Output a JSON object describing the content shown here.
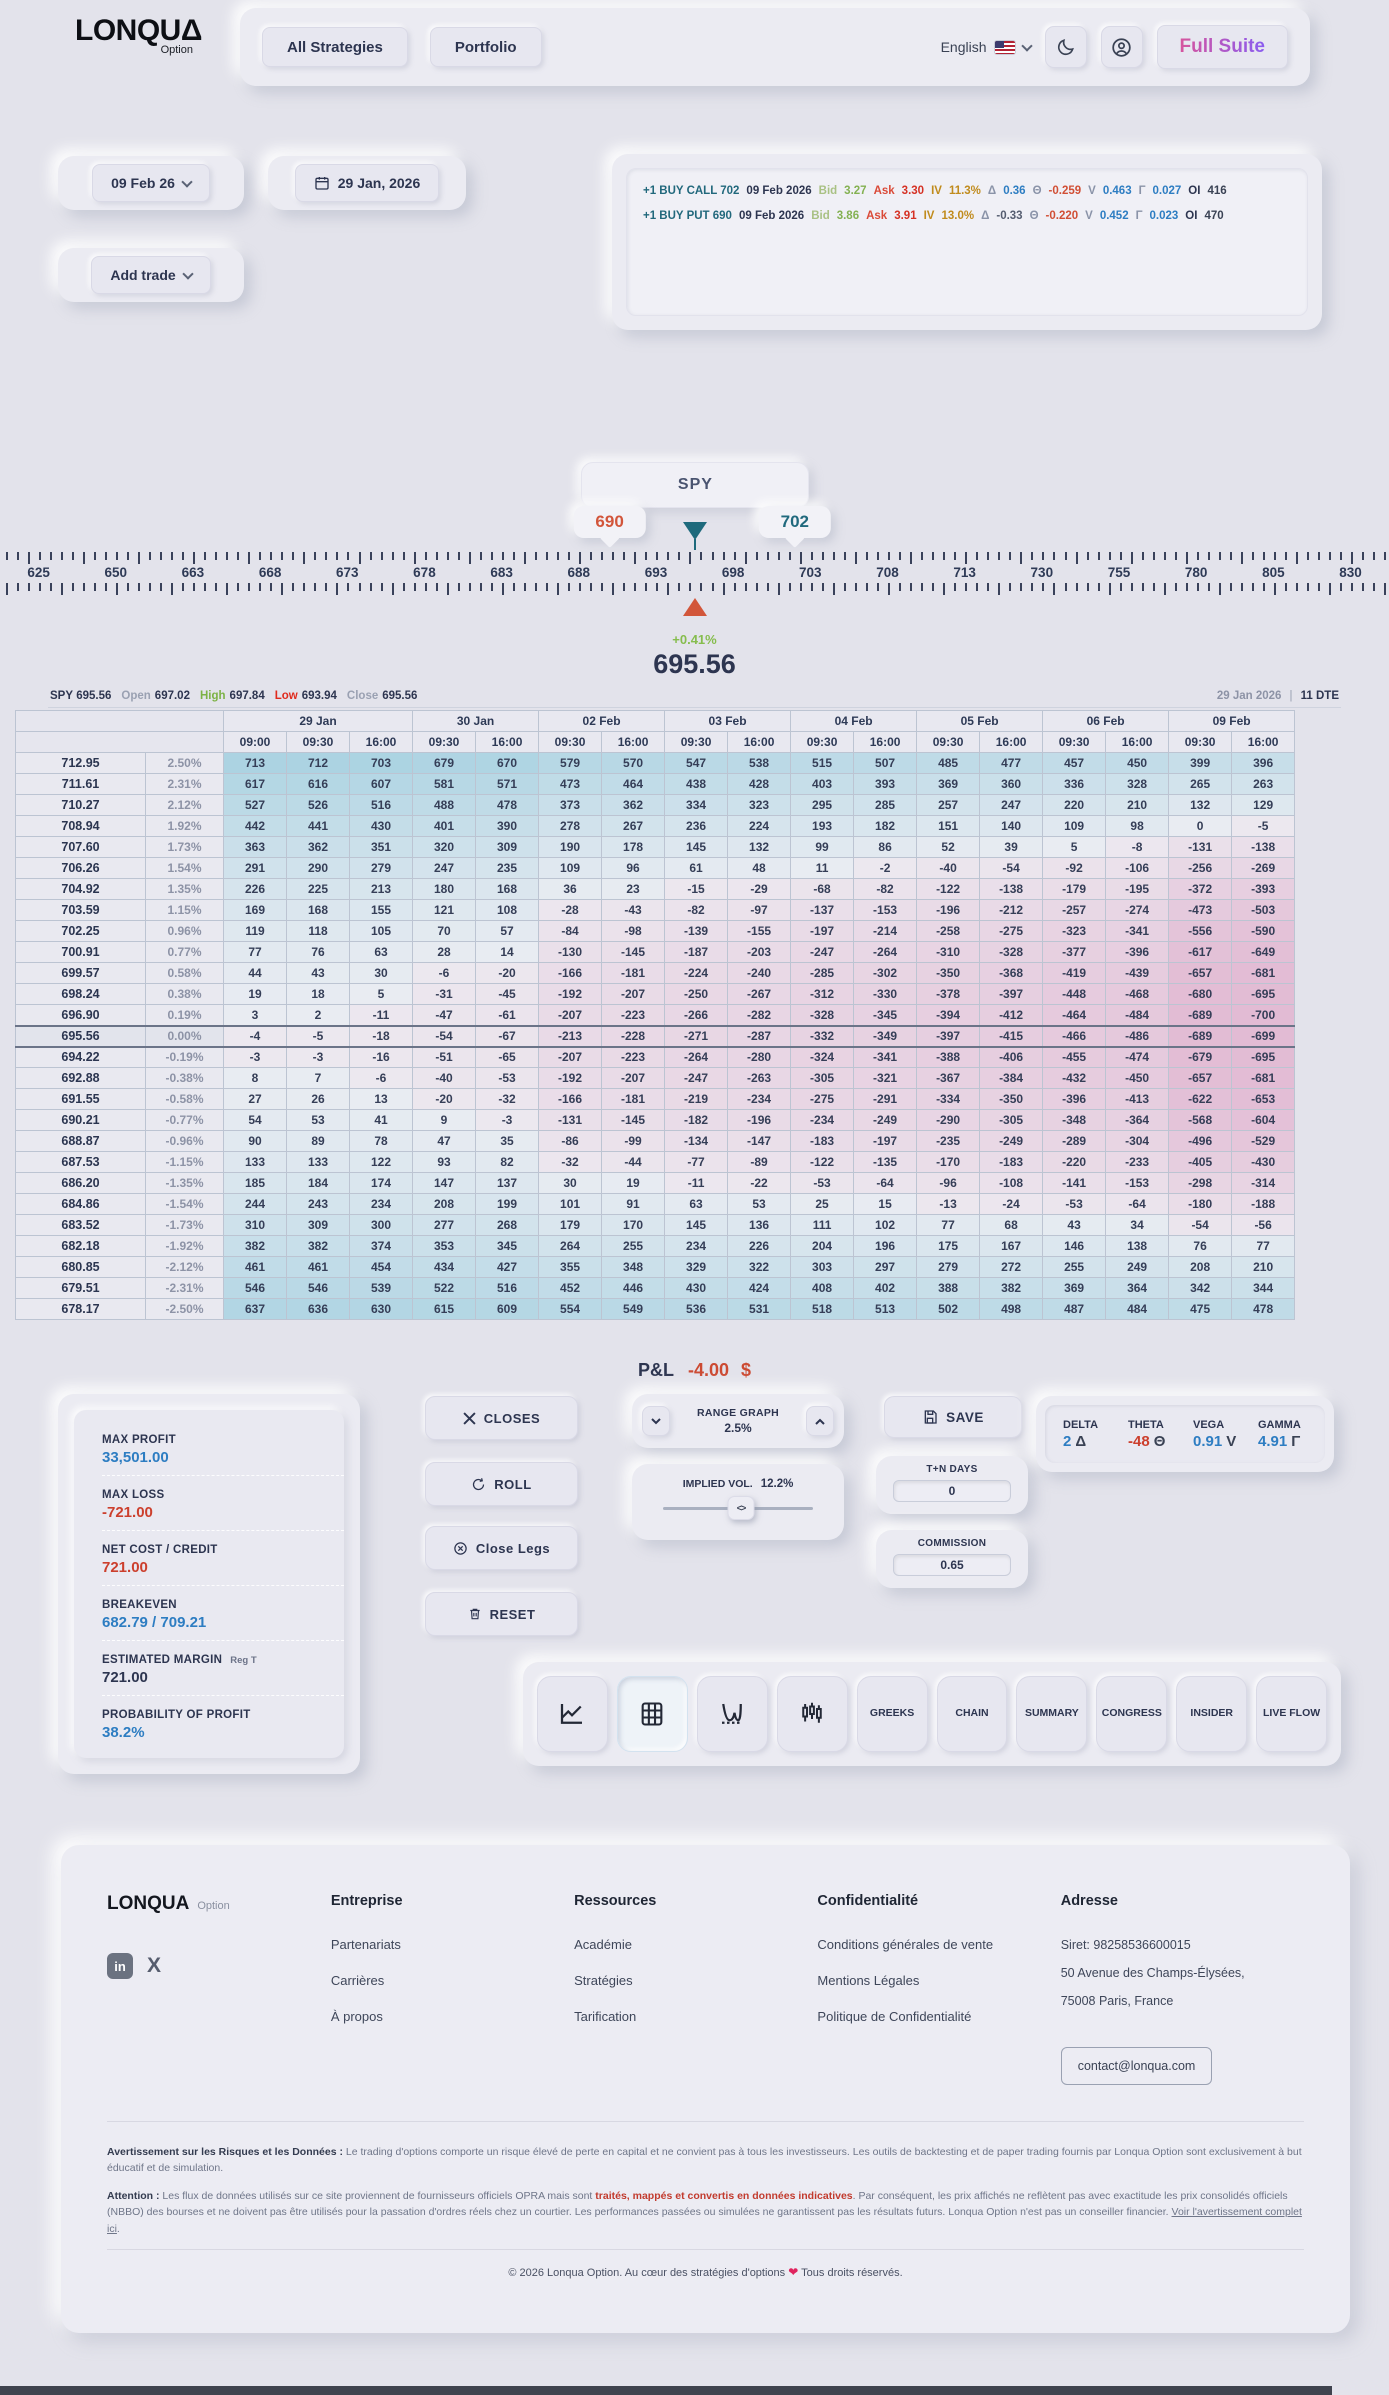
{
  "header": {
    "logo_text": "LONQU",
    "logo_delta": "Δ",
    "logo_sub": "Option",
    "nav": [
      "All Strategies",
      "Portfolio"
    ],
    "language": "English",
    "full_suite": "Full Suite"
  },
  "toolbar": {
    "expiry": "09 Feb 26",
    "trade_date": "29 Jan, 2026",
    "add_trade": "Add trade"
  },
  "legs": [
    {
      "tokens": [
        {
          "t": "+1 BUY CALL 702",
          "c": "side"
        },
        {
          "t": "09 Feb 2026",
          "c": "date"
        },
        {
          "t": "Bid",
          "c": "lab-bid"
        },
        {
          "t": "3.27",
          "c": "val-bid"
        },
        {
          "t": "Ask",
          "c": "lab-ask"
        },
        {
          "t": "3.30",
          "c": "val-ask"
        },
        {
          "t": "IV",
          "c": "lab-iv"
        },
        {
          "t": "11.3%",
          "c": "val-iv"
        },
        {
          "t": "Δ",
          "c": "sym"
        },
        {
          "t": "0.36",
          "c": "val-blue"
        },
        {
          "t": "Θ",
          "c": "sym"
        },
        {
          "t": "-0.259",
          "c": "val-red"
        },
        {
          "t": "V",
          "c": "sym"
        },
        {
          "t": "0.463",
          "c": "val-blue"
        },
        {
          "t": "Γ",
          "c": "sym"
        },
        {
          "t": "0.027",
          "c": "val-blue"
        },
        {
          "t": "OI",
          "c": "lab-oi"
        },
        {
          "t": "416",
          "c": "val-oi"
        }
      ]
    },
    {
      "tokens": [
        {
          "t": "+1 BUY PUT 690",
          "c": "side"
        },
        {
          "t": "09 Feb 2026",
          "c": "date"
        },
        {
          "t": "Bid",
          "c": "lab-bid"
        },
        {
          "t": "3.86",
          "c": "val-bid"
        },
        {
          "t": "Ask",
          "c": "lab-ask"
        },
        {
          "t": "3.91",
          "c": "val-ask"
        },
        {
          "t": "IV",
          "c": "lab-iv"
        },
        {
          "t": "13.0%",
          "c": "val-iv"
        },
        {
          "t": "Δ",
          "c": "sym"
        },
        {
          "t": "-0.33",
          "c": "val-dark"
        },
        {
          "t": "Θ",
          "c": "sym"
        },
        {
          "t": "-0.220",
          "c": "val-red"
        },
        {
          "t": "V",
          "c": "sym"
        },
        {
          "t": "0.452",
          "c": "val-blue"
        },
        {
          "t": "Γ",
          "c": "sym"
        },
        {
          "t": "0.023",
          "c": "val-blue"
        },
        {
          "t": "OI",
          "c": "lab-oi"
        },
        {
          "t": "470",
          "c": "val-oi"
        }
      ]
    }
  ],
  "slider": {
    "symbol": "SPY",
    "lower_badge": "690",
    "upper_badge": "702",
    "lower_value": 690,
    "upper_value": 702,
    "current_value": 695.56,
    "ruler_labels": [
      625,
      650,
      663,
      668,
      673,
      678,
      683,
      688,
      693,
      698,
      703,
      708,
      713,
      730,
      755,
      780,
      805,
      830
    ],
    "change_pct": "+0.41%",
    "price_display": "695.56"
  },
  "ohlc": {
    "sym": "SPY",
    "last": "695.56",
    "o_l": "Open",
    "o": "697.02",
    "h_l": "High",
    "h": "697.84",
    "l_l": "Low",
    "l": "693.94",
    "c_l": "Close",
    "c": "695.56",
    "date": "29 Jan 2026",
    "sep": "|",
    "dte": "11 DTE"
  },
  "matrix": {
    "date_groups": [
      {
        "label": "29 Jan",
        "times": [
          "09:00",
          "09:30",
          "16:00"
        ]
      },
      {
        "label": "30 Jan",
        "times": [
          "09:30",
          "16:00"
        ]
      },
      {
        "label": "02 Feb",
        "times": [
          "09:30",
          "16:00"
        ]
      },
      {
        "label": "03 Feb",
        "times": [
          "09:30",
          "16:00"
        ]
      },
      {
        "label": "04 Feb",
        "times": [
          "09:30",
          "16:00"
        ]
      },
      {
        "label": "05 Feb",
        "times": [
          "09:30",
          "16:00"
        ]
      },
      {
        "label": "06 Feb",
        "times": [
          "09:30",
          "16:00"
        ]
      },
      {
        "label": "09 Feb",
        "times": [
          "09:30",
          "16:00"
        ]
      }
    ],
    "current_row_index": 13,
    "rows": [
      {
        "price": "712.95",
        "pct": "2.50%",
        "values": [
          713,
          712,
          703,
          679,
          670,
          579,
          570,
          547,
          538,
          515,
          507,
          485,
          477,
          457,
          450,
          399,
          396
        ]
      },
      {
        "price": "711.61",
        "pct": "2.31%",
        "values": [
          617,
          616,
          607,
          581,
          571,
          473,
          464,
          438,
          428,
          403,
          393,
          369,
          360,
          336,
          328,
          265,
          263
        ]
      },
      {
        "price": "710.27",
        "pct": "2.12%",
        "values": [
          527,
          526,
          516,
          488,
          478,
          373,
          362,
          334,
          323,
          295,
          285,
          257,
          247,
          220,
          210,
          132,
          129
        ]
      },
      {
        "price": "708.94",
        "pct": "1.92%",
        "values": [
          442,
          441,
          430,
          401,
          390,
          278,
          267,
          236,
          224,
          193,
          182,
          151,
          140,
          109,
          98,
          0,
          -5
        ]
      },
      {
        "price": "707.60",
        "pct": "1.73%",
        "values": [
          363,
          362,
          351,
          320,
          309,
          190,
          178,
          145,
          132,
          99,
          86,
          52,
          39,
          5,
          -8,
          -131,
          -138
        ]
      },
      {
        "price": "706.26",
        "pct": "1.54%",
        "values": [
          291,
          290,
          279,
          247,
          235,
          109,
          96,
          61,
          48,
          11,
          -2,
          -40,
          -54,
          -92,
          -106,
          -256,
          -269
        ]
      },
      {
        "price": "704.92",
        "pct": "1.35%",
        "values": [
          226,
          225,
          213,
          180,
          168,
          36,
          23,
          -15,
          -29,
          -68,
          -82,
          -122,
          -138,
          -179,
          -195,
          -372,
          -393
        ]
      },
      {
        "price": "703.59",
        "pct": "1.15%",
        "values": [
          169,
          168,
          155,
          121,
          108,
          -28,
          -43,
          -82,
          -97,
          -137,
          -153,
          -196,
          -212,
          -257,
          -274,
          -473,
          -503
        ]
      },
      {
        "price": "702.25",
        "pct": "0.96%",
        "values": [
          119,
          118,
          105,
          70,
          57,
          -84,
          -98,
          -139,
          -155,
          -197,
          -214,
          -258,
          -275,
          -323,
          -341,
          -556,
          -590
        ]
      },
      {
        "price": "700.91",
        "pct": "0.77%",
        "values": [
          77,
          76,
          63,
          28,
          14,
          -130,
          -145,
          -187,
          -203,
          -247,
          -264,
          -310,
          -328,
          -377,
          -396,
          -617,
          -649
        ]
      },
      {
        "price": "699.57",
        "pct": "0.58%",
        "values": [
          44,
          43,
          30,
          -6,
          -20,
          -166,
          -181,
          -224,
          -240,
          -285,
          -302,
          -350,
          -368,
          -419,
          -439,
          -657,
          -681
        ]
      },
      {
        "price": "698.24",
        "pct": "0.38%",
        "values": [
          19,
          18,
          5,
          -31,
          -45,
          -192,
          -207,
          -250,
          -267,
          -312,
          -330,
          -378,
          -397,
          -448,
          -468,
          -680,
          -695
        ]
      },
      {
        "price": "696.90",
        "pct": "0.19%",
        "values": [
          3,
          2,
          -11,
          -47,
          -61,
          -207,
          -223,
          -266,
          -282,
          -328,
          -345,
          -394,
          -412,
          -464,
          -484,
          -689,
          -700
        ]
      },
      {
        "price": "695.56",
        "pct": "0.00%",
        "values": [
          -4,
          -5,
          -18,
          -54,
          -67,
          -213,
          -228,
          -271,
          -287,
          -332,
          -349,
          -397,
          -415,
          -466,
          -486,
          -689,
          -699
        ]
      },
      {
        "price": "694.22",
        "pct": "-0.19%",
        "values": [
          -3,
          -3,
          -16,
          -51,
          -65,
          -207,
          -223,
          -264,
          -280,
          -324,
          -341,
          -388,
          -406,
          -455,
          -474,
          -679,
          -695
        ]
      },
      {
        "price": "692.88",
        "pct": "-0.38%",
        "values": [
          8,
          7,
          -6,
          -40,
          -53,
          -192,
          -207,
          -247,
          -263,
          -305,
          -321,
          -367,
          -384,
          -432,
          -450,
          -657,
          -681
        ]
      },
      {
        "price": "691.55",
        "pct": "-0.58%",
        "values": [
          27,
          26,
          13,
          -20,
          -32,
          -166,
          -181,
          -219,
          -234,
          -275,
          -291,
          -334,
          -350,
          -396,
          -413,
          -622,
          -653
        ]
      },
      {
        "price": "690.21",
        "pct": "-0.77%",
        "values": [
          54,
          53,
          41,
          9,
          -3,
          -131,
          -145,
          -182,
          -196,
          -234,
          -249,
          -290,
          -305,
          -348,
          -364,
          -568,
          -604
        ]
      },
      {
        "price": "688.87",
        "pct": "-0.96%",
        "values": [
          90,
          89,
          78,
          47,
          35,
          -86,
          -99,
          -134,
          -147,
          -183,
          -197,
          -235,
          -249,
          -289,
          -304,
          -496,
          -529
        ]
      },
      {
        "price": "687.53",
        "pct": "-1.15%",
        "values": [
          133,
          133,
          122,
          93,
          82,
          -32,
          -44,
          -77,
          -89,
          -122,
          -135,
          -170,
          -183,
          -220,
          -233,
          -405,
          -430
        ]
      },
      {
        "price": "686.20",
        "pct": "-1.35%",
        "values": [
          185,
          184,
          174,
          147,
          137,
          30,
          19,
          -11,
          -22,
          -53,
          -64,
          -96,
          -108,
          -141,
          -153,
          -298,
          -314
        ]
      },
      {
        "price": "684.86",
        "pct": "-1.54%",
        "values": [
          244,
          243,
          234,
          208,
          199,
          101,
          91,
          63,
          53,
          25,
          15,
          -13,
          -24,
          -53,
          -64,
          -180,
          -188
        ]
      },
      {
        "price": "683.52",
        "pct": "-1.73%",
        "values": [
          310,
          309,
          300,
          277,
          268,
          179,
          170,
          145,
          136,
          111,
          102,
          77,
          68,
          43,
          34,
          -54,
          -56
        ]
      },
      {
        "price": "682.18",
        "pct": "-1.92%",
        "values": [
          382,
          382,
          374,
          353,
          345,
          264,
          255,
          234,
          226,
          204,
          196,
          175,
          167,
          146,
          138,
          76,
          77
        ]
      },
      {
        "price": "680.85",
        "pct": "-2.12%",
        "values": [
          461,
          461,
          454,
          434,
          427,
          355,
          348,
          329,
          322,
          303,
          297,
          279,
          272,
          255,
          249,
          208,
          210
        ]
      },
      {
        "price": "679.51",
        "pct": "-2.31%",
        "values": [
          546,
          546,
          539,
          522,
          516,
          452,
          446,
          430,
          424,
          408,
          402,
          388,
          382,
          369,
          364,
          342,
          344
        ]
      },
      {
        "price": "678.17",
        "pct": "-2.50%",
        "values": [
          637,
          636,
          630,
          615,
          609,
          554,
          549,
          536,
          531,
          518,
          513,
          502,
          498,
          487,
          484,
          475,
          478
        ]
      }
    ]
  },
  "pnl": {
    "label": "P&L",
    "value": "-4.00",
    "currency": "$"
  },
  "stats": {
    "items": [
      {
        "label": "MAX PROFIT",
        "value": "33,501.00"
      },
      {
        "label": "MAX LOSS",
        "value": "-721.00"
      },
      {
        "label": "NET COST / CREDIT",
        "value": "721.00"
      },
      {
        "label": "BREAKEVEN",
        "value": "682.79 / 709.21"
      },
      {
        "label": "ESTIMATED MARGIN",
        "tag": "Reg T",
        "value": "721.00"
      },
      {
        "label": "PROBABILITY OF PROFIT",
        "value": "38.2%"
      }
    ]
  },
  "actions": {
    "closes": "CLOSES",
    "roll": "ROLL",
    "close_legs": "Close Legs",
    "reset": "RESET",
    "save": "SAVE"
  },
  "range_graph": {
    "label": "RANGE GRAPH",
    "value": "2.5%"
  },
  "implied_vol": {
    "label": "IMPLIED VOL.",
    "value": "12.2%",
    "handle": "<>"
  },
  "tn_days": {
    "label": "T+N DAYS",
    "value": "0"
  },
  "commission": {
    "label": "COMMISSION",
    "value": "0.65"
  },
  "greeks": {
    "items": [
      {
        "label": "DELTA",
        "value": "2",
        "symbol": "Δ",
        "color": "v-blue"
      },
      {
        "label": "THETA",
        "value": "-48",
        "symbol": "Θ",
        "color": "v-red"
      },
      {
        "label": "VEGA",
        "value": "0.91",
        "symbol": "V",
        "color": "v-blue"
      },
      {
        "label": "GAMMA",
        "value": "4.91",
        "symbol": "Γ",
        "color": "v-blue"
      }
    ]
  },
  "tabs": {
    "text": [
      "GREEKS",
      "CHAIN",
      "SUMMARY",
      "CONGRESS",
      "INSIDER",
      "LIVE FLOW"
    ]
  },
  "footer": {
    "brand": "LONQUA",
    "brand_sub": "Option",
    "social": {
      "linkedin": "in",
      "x": "X"
    },
    "columns": [
      {
        "title": "Entreprise",
        "links": [
          "Partenariats",
          "Carrières",
          "À propos"
        ]
      },
      {
        "title": "Ressources",
        "links": [
          "Académie",
          "Stratégies",
          "Tarification"
        ]
      },
      {
        "title": "Confidentialité",
        "links": [
          "Conditions générales de vente",
          "Mentions Légales",
          "Politique de Confidentialité"
        ]
      }
    ],
    "address": {
      "title": "Adresse",
      "lines": [
        "Siret: 98258536600015",
        "50 Avenue des Champs-Élysées,",
        "75008 Paris, France"
      ],
      "contact": "contact@lonqua.com"
    },
    "disclaimer1": [
      {
        "t": "Avertissement sur les Risques et les Données : ",
        "s": "b"
      },
      {
        "t": "Le trading d'options comporte un risque élevé de perte en capital et ne convient pas à tous les investisseurs. Les outils de backtesting et de paper trading fournis par Lonqua Option sont exclusivement à but éducatif et de simulation.",
        "s": "n"
      }
    ],
    "disclaimer2": [
      {
        "t": "Attention : ",
        "s": "b"
      },
      {
        "t": "Les flux de données utilisés sur ce site proviennent de fournisseurs officiels OPRA mais sont ",
        "s": "n"
      },
      {
        "t": "traités, mappés et convertis en données indicatives",
        "s": "r"
      },
      {
        "t": ". Par conséquent, les prix affichés ne reflètent pas avec exactitude les prix consolidés officiels (NBBO) des bourses et ne doivent pas être utilisés pour la passation d'ordres réels chez un courtier. Les performances passées ou simulées ne garantissent pas les résultats futurs. Lonqua Option n'est pas un conseiller financier. ",
        "s": "n"
      },
      {
        "t": "Voir l'avertissement complet ici",
        "s": "u"
      },
      {
        "t": ".",
        "s": "n"
      }
    ],
    "copyright": [
      {
        "t": "© 2026 Lonqua Option. Au cœur des stratégies d'options ",
        "s": "n"
      },
      {
        "t": "❤",
        "s": "heart"
      },
      {
        "t": " Tous droits réservés.",
        "s": "n"
      }
    ]
  }
}
